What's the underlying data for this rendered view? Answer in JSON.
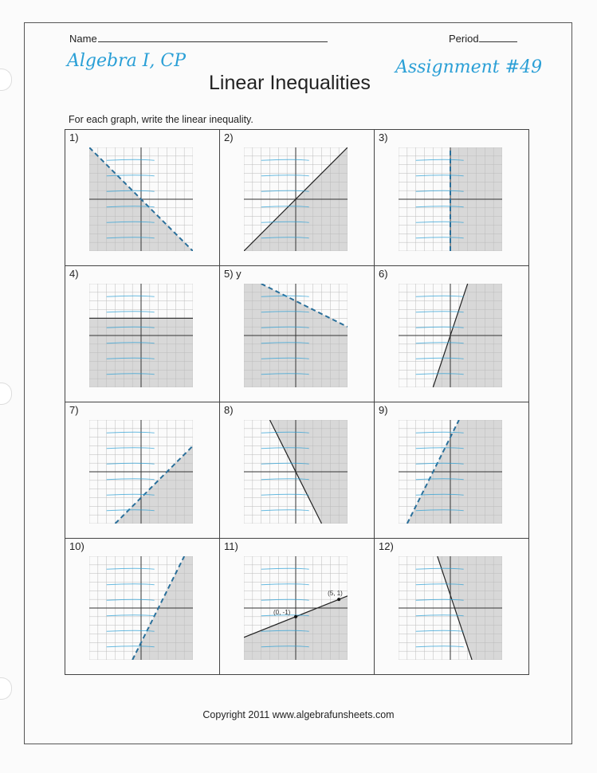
{
  "header": {
    "name_label": "Name",
    "period_label": "Period",
    "handwritten_left": "Algebra I, CP",
    "handwritten_right": "Assignment #49"
  },
  "title": "Linear Inequalities",
  "instructions": "For each graph, write the linear inequality.",
  "problems": [
    {
      "label": "1)",
      "line": [
        [
          -6,
          6
        ],
        [
          6,
          -6
        ]
      ],
      "dashed": true,
      "shade": "below"
    },
    {
      "label": "2)",
      "line": [
        [
          -6,
          -6
        ],
        [
          6,
          6
        ]
      ],
      "dashed": false,
      "shade": "below"
    },
    {
      "label": "3)",
      "line": [
        [
          0,
          -6
        ],
        [
          0,
          6
        ]
      ],
      "dashed": true,
      "shade": "right"
    },
    {
      "label": "4)",
      "line": [
        [
          -6,
          2
        ],
        [
          6,
          2
        ]
      ],
      "dashed": false,
      "shade": "below"
    },
    {
      "label": "5) y",
      "line": [
        [
          -6,
          7
        ],
        [
          6,
          1
        ]
      ],
      "dashed": true,
      "shade": "below"
    },
    {
      "label": "6)",
      "line": [
        [
          -2,
          -6
        ],
        [
          2,
          6
        ]
      ],
      "dashed": false,
      "shade": "right"
    },
    {
      "label": "7)",
      "line": [
        [
          -3,
          -6
        ],
        [
          6,
          3
        ]
      ],
      "dashed": true,
      "shade": "right"
    },
    {
      "label": "8)",
      "line": [
        [
          -3,
          6
        ],
        [
          3,
          -6
        ]
      ],
      "dashed": false,
      "shade": "above"
    },
    {
      "label": "9)",
      "line": [
        [
          -5,
          -6
        ],
        [
          1,
          6
        ]
      ],
      "dashed": true,
      "shade": "right"
    },
    {
      "label": "10)",
      "line": [
        [
          -1,
          -6
        ],
        [
          5,
          6
        ]
      ],
      "dashed": true,
      "shade": "right"
    },
    {
      "label": "11)",
      "line": [
        [
          -6,
          -3.4
        ],
        [
          6,
          1.4
        ]
      ],
      "dashed": false,
      "shade": "below",
      "points": [
        {
          "x": 5,
          "y": 1,
          "text": "(5, 1)"
        },
        {
          "x": 0,
          "y": -1,
          "text": "(0, -1)"
        }
      ]
    },
    {
      "label": "12)",
      "line": [
        [
          -1.5,
          6
        ],
        [
          2.5,
          -6
        ]
      ],
      "dashed": false,
      "shade": "right"
    }
  ],
  "colors": {
    "ink": "#2a9fd6",
    "shade": "#d8d8d8"
  },
  "footer": "Copyright 2011 www.algebrafunsheets.com"
}
